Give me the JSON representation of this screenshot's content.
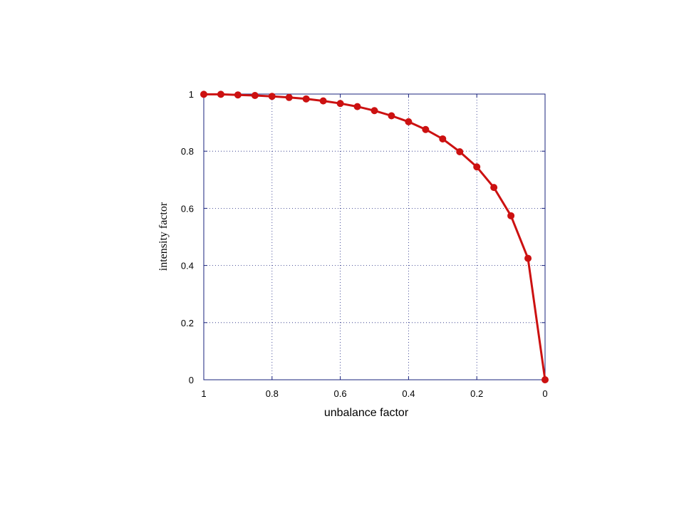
{
  "chart_data": {
    "type": "line",
    "title": "",
    "xlabel": "unbalance factor",
    "ylabel": "intensity factor",
    "xlim": [
      1,
      0
    ],
    "ylim": [
      0,
      1
    ],
    "x_reversed": true,
    "grid": true,
    "legend": "none",
    "x_ticks": [
      1,
      0.8,
      0.6,
      0.4,
      0.2,
      0
    ],
    "x_tick_labels": [
      "1",
      "0.8",
      "0.6",
      "0.4",
      "0.2",
      "0"
    ],
    "y_ticks": [
      0,
      0.2,
      0.4,
      0.6,
      0.8,
      1
    ],
    "y_tick_labels": [
      "0",
      "0.2",
      "0.4",
      "0.6",
      "0.8",
      "1"
    ],
    "series": [
      {
        "color": "#cc1111",
        "marker": "circle",
        "x": [
          1,
          0.95,
          0.9,
          0.85,
          0.8,
          0.75,
          0.7,
          0.65,
          0.6,
          0.55,
          0.5,
          0.45,
          0.4,
          0.35,
          0.3,
          0.25,
          0.2,
          0.15,
          0.1,
          0.05,
          0
        ],
        "y": [
          0.999,
          0.999,
          0.997,
          0.995,
          0.992,
          0.988,
          0.983,
          0.976,
          0.967,
          0.956,
          0.942,
          0.924,
          0.903,
          0.876,
          0.843,
          0.798,
          0.745,
          0.673,
          0.574,
          0.425,
          0
        ]
      }
    ],
    "colors": {
      "axis": "#1a237e",
      "grid": "#1a237e",
      "line": "#cc1111"
    }
  }
}
